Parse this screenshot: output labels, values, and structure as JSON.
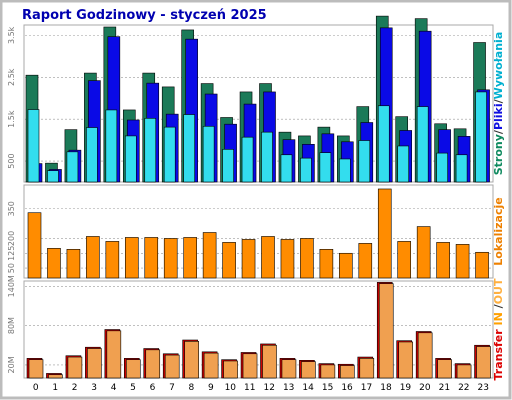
{
  "title": "Raport Godzinowy - styczeń 2025",
  "chart_data": [
    {
      "type": "bar",
      "panel": "top",
      "categories": [
        "0",
        "1",
        "2",
        "3",
        "4",
        "5",
        "6",
        "7",
        "8",
        "9",
        "10",
        "11",
        "12",
        "13",
        "14",
        "15",
        "16",
        "17",
        "18",
        "19",
        "20",
        "21",
        "22",
        "23"
      ],
      "ylim": [
        0,
        3700
      ],
      "ytick_labels": [
        "500",
        "1.5k",
        "2.5k",
        "3.5k"
      ],
      "ytick_values": [
        500,
        1500,
        2500,
        3500
      ],
      "side_label_parts": [
        {
          "text": "Strony",
          "color": "#0f8a5f"
        },
        {
          "text": "/",
          "color": "#333333"
        },
        {
          "text": "Pliki",
          "color": "#1010e0"
        },
        {
          "text": "/",
          "color": "#333333"
        },
        {
          "text": "Wywołania",
          "color": "#00b0d0"
        }
      ],
      "series": [
        {
          "name": "Strony",
          "color": "#1b7a58",
          "values": [
            2550,
            450,
            1250,
            2600,
            3700,
            1720,
            2600,
            2270,
            3630,
            2350,
            1540,
            2150,
            2350,
            1190,
            1100,
            1310,
            1100,
            1800,
            3960,
            1560,
            3900,
            1390,
            1270,
            3330
          ]
        },
        {
          "name": "Pliki",
          "color": "#0a0ae6",
          "values": [
            440,
            300,
            760,
            2420,
            3470,
            1480,
            2360,
            1620,
            3410,
            2100,
            1380,
            1860,
            2150,
            1010,
            900,
            1150,
            960,
            1420,
            3680,
            1230,
            3600,
            1250,
            1090,
            2200
          ]
        },
        {
          "name": "Wywołania",
          "color": "#33ddee",
          "values": [
            1730,
            270,
            720,
            1300,
            1720,
            1100,
            1520,
            1310,
            1610,
            1330,
            780,
            1070,
            1190,
            650,
            570,
            700,
            550,
            990,
            1820,
            860,
            1800,
            690,
            650,
            2150
          ]
        }
      ]
    },
    {
      "type": "bar",
      "panel": "middle",
      "categories": [
        "0",
        "1",
        "2",
        "3",
        "4",
        "5",
        "6",
        "7",
        "8",
        "9",
        "10",
        "11",
        "12",
        "13",
        "14",
        "15",
        "16",
        "17",
        "18",
        "19",
        "20",
        "21",
        "22",
        "23"
      ],
      "ylim": [
        0,
        460
      ],
      "ytick_labels": [
        "50",
        "125",
        "200",
        "350"
      ],
      "ytick_values": [
        50,
        125,
        200,
        350
      ],
      "side_label_parts": [
        {
          "text": "Lokalizacje",
          "color": "#ee8000"
        }
      ],
      "series": [
        {
          "name": "Lokalizacje",
          "color": "#ff8c00",
          "values": [
            330,
            150,
            145,
            210,
            185,
            205,
            205,
            200,
            205,
            230,
            180,
            195,
            210,
            195,
            200,
            145,
            125,
            175,
            450,
            185,
            260,
            180,
            170,
            130
          ]
        }
      ]
    },
    {
      "type": "bar",
      "panel": "bottom",
      "categories": [
        "0",
        "1",
        "2",
        "3",
        "4",
        "5",
        "6",
        "7",
        "8",
        "9",
        "10",
        "11",
        "12",
        "13",
        "14",
        "15",
        "16",
        "17",
        "18",
        "19",
        "20",
        "21",
        "22",
        "23"
      ],
      "ylim": [
        0,
        145
      ],
      "ytick_labels": [
        "20M",
        "80M",
        "140M"
      ],
      "ytick_values": [
        20,
        80,
        140
      ],
      "side_label_parts": [
        {
          "text": "Transfer",
          "color": "#dd0000"
        },
        {
          "text": " IN ",
          "color": "#ffa000"
        },
        {
          "text": "/",
          "color": "#333333"
        },
        {
          "text": "OUT",
          "color": "#ffb040"
        }
      ],
      "series": [
        {
          "name": "Transfer",
          "color": "#cc0000",
          "values": [
            30,
            7,
            34,
            47,
            74,
            30,
            45,
            37,
            58,
            40,
            28,
            39,
            52,
            30,
            27,
            22,
            21,
            32,
            146,
            57,
            71,
            30,
            22,
            50
          ]
        },
        {
          "name": "Transfer OUT",
          "color": "#f0a050",
          "values": [
            28,
            5,
            32,
            45,
            72,
            28,
            43,
            35,
            56,
            38,
            26,
            37,
            50,
            28,
            25,
            20,
            19,
            30,
            144,
            55,
            69,
            28,
            20,
            48
          ]
        }
      ]
    }
  ],
  "colors": {
    "background": "#ffffff",
    "frame": "#bcbcbc",
    "panel_border": "#a8a8a8",
    "gridline": "#9a9a9a",
    "title": "#0000b0"
  }
}
